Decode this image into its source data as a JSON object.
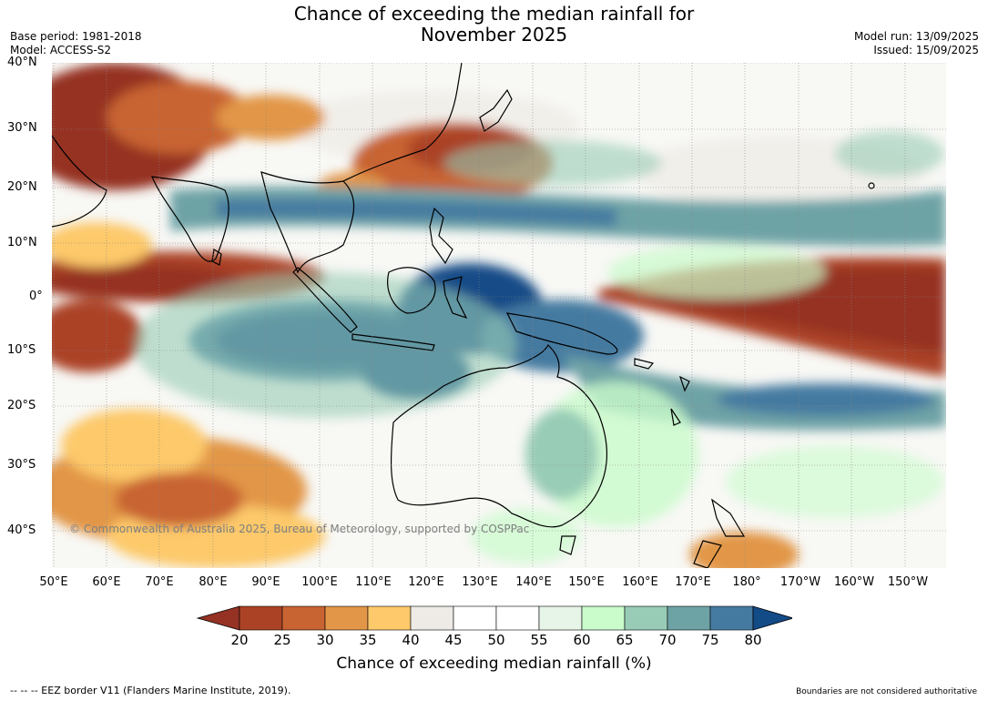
{
  "title_line1": "Chance of exceeding the median rainfall for",
  "title_line2": "November 2025",
  "meta_left": [
    "Base period: 1981-2018",
    "Model: ACCESS-S2"
  ],
  "meta_right": [
    "Model run: 13/09/2025",
    "Issued: 15/09/2025"
  ],
  "lat_labels": [
    "40°N",
    "30°N",
    "20°N",
    "10°N",
    "0°",
    "10°S",
    "20°S",
    "30°S",
    "40°S"
  ],
  "lon_labels": [
    "50°E",
    "60°E",
    "70°E",
    "80°E",
    "90°E",
    "100°E",
    "110°E",
    "120°E",
    "130°E",
    "140°E",
    "150°E",
    "160°E",
    "170°E",
    "180°",
    "170°W",
    "160°W",
    "150°W"
  ],
  "copyright": "© Commonwealth of Australia 2025, Bureau of Meteorology, supported by COSPPac",
  "colorbar": {
    "label": "Chance of exceeding median rainfall (%)",
    "ticks": [
      "20",
      "25",
      "30",
      "35",
      "40",
      "45",
      "50",
      "55",
      "60",
      "65",
      "70",
      "75",
      "80"
    ],
    "colors": [
      "#953224",
      "#ab4226",
      "#c86332",
      "#e29647",
      "#fdc96b",
      "#eeebe6",
      "#ffffff",
      "#ffffff",
      "#e7f5e8",
      "#c9fbcb",
      "#98ccb6",
      "#6ea3a6",
      "#457aa0",
      "#134b87"
    ]
  },
  "footer_left": "--  --  -- EEZ border V11 (Flanders Marine Institute, 2019).",
  "footer_right": "Boundaries are not considered authoritative"
}
